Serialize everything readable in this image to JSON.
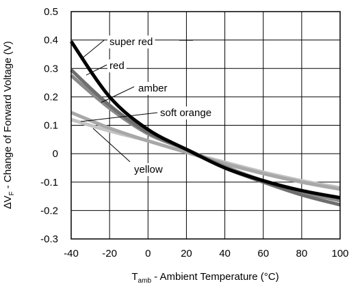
{
  "chart_data": {
    "type": "line",
    "title": "",
    "xlabel": {
      "main": "T",
      "sub": "amb",
      "rest": " - Ambient Temperature (°C)"
    },
    "ylabel": {
      "delta": "∆V",
      "sub": "F",
      "rest": " - Change of Forward Voltage (V)"
    },
    "xlim": [
      -40,
      100
    ],
    "ylim": [
      -0.3,
      0.5
    ],
    "x_ticks": [
      "-40",
      "-20",
      "0",
      "20",
      "40",
      "60",
      "80",
      "100"
    ],
    "y_ticks": [
      "0.5",
      "0.4",
      "0.3",
      "0.2",
      "0.1",
      "0",
      "-0.1",
      "-0.2",
      "-0.3"
    ],
    "grid": true,
    "legend": "inline labels with leader lines",
    "series": [
      {
        "name": "super red",
        "color": "#000000",
        "x": [
          -40,
          -20,
          0,
          20,
          40,
          60,
          80,
          100
        ],
        "y": [
          0.395,
          0.2,
          0.085,
          0.015,
          -0.05,
          -0.095,
          -0.13,
          -0.155
        ]
      },
      {
        "name": "red",
        "color": "#6e6e6e",
        "x": [
          -40,
          -20,
          0,
          20,
          40,
          60,
          80,
          100
        ],
        "y": [
          0.295,
          0.17,
          0.075,
          0.015,
          -0.05,
          -0.1,
          -0.145,
          -0.18
        ]
      },
      {
        "name": "amber",
        "color": "#8a8a8a",
        "x": [
          -40,
          -20,
          0,
          20,
          40,
          60,
          80,
          100
        ],
        "y": [
          0.275,
          0.16,
          0.07,
          0.015,
          -0.045,
          -0.095,
          -0.135,
          -0.165
        ]
      },
      {
        "name": "soft orange",
        "color": "#a8a8a8",
        "x": [
          -40,
          -20,
          0,
          20,
          40,
          60,
          80,
          100
        ],
        "y": [
          0.145,
          0.09,
          0.045,
          0.005,
          -0.035,
          -0.07,
          -0.1,
          -0.125
        ]
      },
      {
        "name": "yellow",
        "color": "#c4c4c4",
        "x": [
          -40,
          -20,
          0,
          20,
          40,
          60,
          80,
          100
        ],
        "y": [
          0.12,
          0.08,
          0.045,
          0.005,
          -0.03,
          -0.065,
          -0.095,
          -0.12
        ]
      }
    ]
  }
}
